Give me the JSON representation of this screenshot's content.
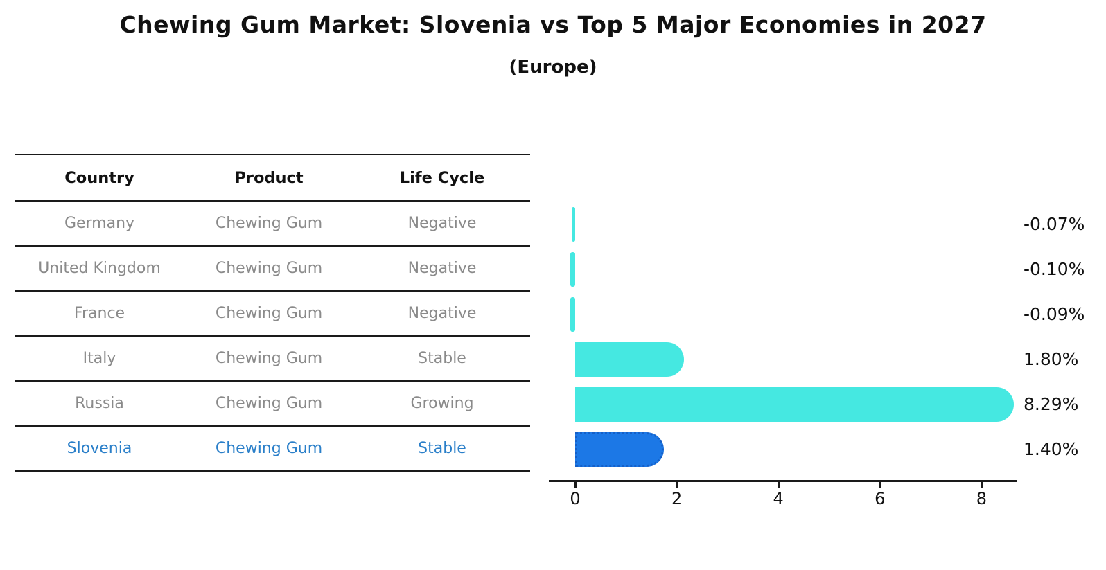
{
  "title": "Chewing Gum Market: Slovenia vs Top 5 Major Economies in 2027",
  "subtitle": "(Europe)",
  "table": {
    "headers": {
      "country": "Country",
      "product": "Product",
      "life_cycle": "Life Cycle"
    },
    "rows": [
      {
        "country": "Germany",
        "product": "Chewing Gum",
        "life_cycle": "Negative",
        "highlight": false
      },
      {
        "country": "United Kingdom",
        "product": "Chewing Gum",
        "life_cycle": "Negative",
        "highlight": false
      },
      {
        "country": "France",
        "product": "Chewing Gum",
        "life_cycle": "Negative",
        "highlight": false
      },
      {
        "country": "Italy",
        "product": "Chewing Gum",
        "life_cycle": "Stable",
        "highlight": false
      },
      {
        "country": "Russia",
        "product": "Chewing Gum",
        "life_cycle": "Growing",
        "highlight": false
      },
      {
        "country": "Slovenia",
        "product": "Chewing Gum",
        "life_cycle": "Stable",
        "highlight": true
      }
    ]
  },
  "chart_data": {
    "type": "bar",
    "orientation": "horizontal",
    "title": "Chewing Gum Market: Slovenia vs Top 5 Major Economies in 2027 (Europe)",
    "categories": [
      "Germany",
      "United Kingdom",
      "France",
      "Italy",
      "Russia",
      "Slovenia"
    ],
    "values": [
      -0.07,
      -0.1,
      -0.09,
      1.8,
      8.29,
      1.4
    ],
    "value_labels": [
      "-0.07%",
      "-0.10%",
      "-0.09%",
      "1.80%",
      "8.29%",
      "1.40%"
    ],
    "unit": "%",
    "xlim": [
      -0.52,
      8.71
    ],
    "xticks": [
      0,
      2,
      4,
      6,
      8
    ],
    "grid": false,
    "legend": "none",
    "bar_color": "#45e8e1",
    "highlight_color": "#1c78e6",
    "highlight_border_color": "#1560c8",
    "highlight_index": 5,
    "axis_color": "#1a1a1a"
  },
  "colors": {
    "background": "#ffffff",
    "title_text": "#111111",
    "table_text": "#8a8a8a",
    "table_header_text": "#111111",
    "highlight_text": "#2a7fc9",
    "accent_cyan": "#45e8e1",
    "accent_blue": "#1c78e6"
  }
}
